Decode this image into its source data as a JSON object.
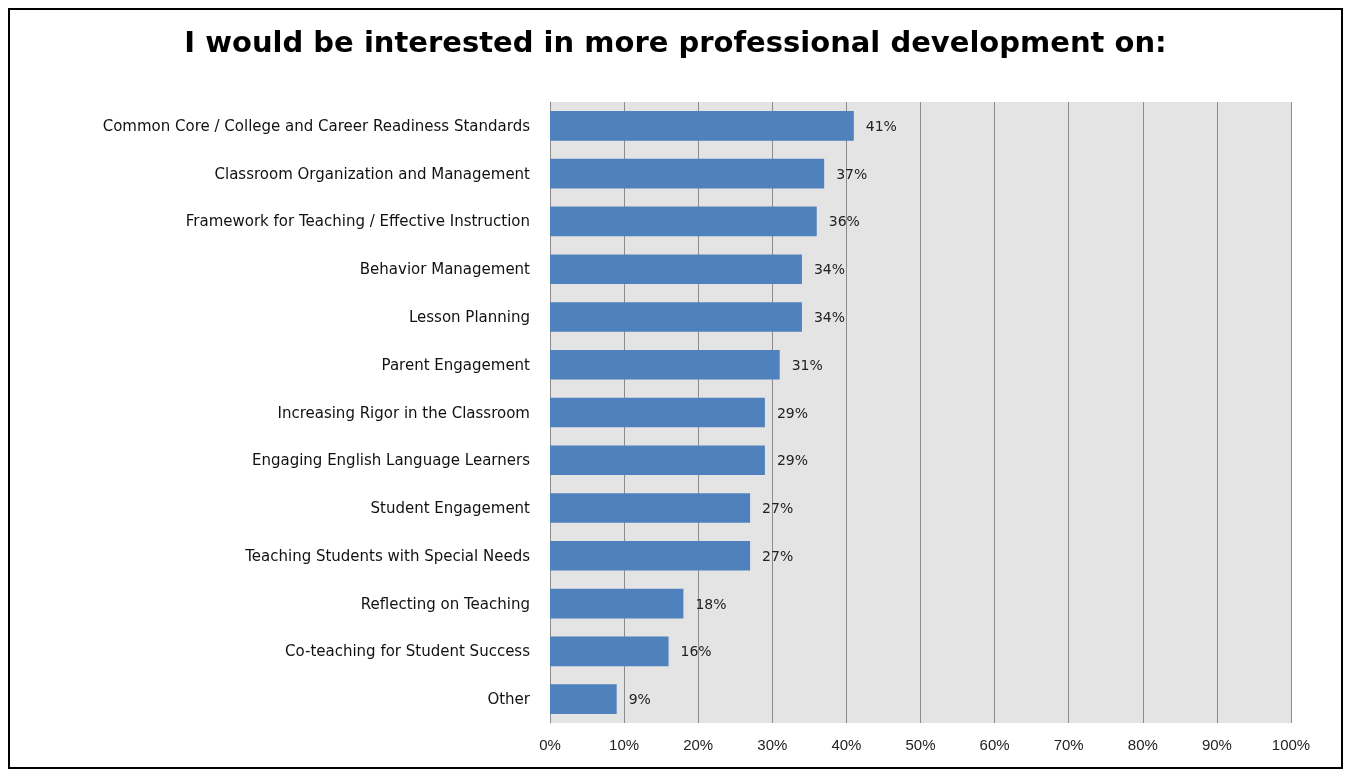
{
  "chart_data": {
    "type": "bar",
    "orientation": "horizontal",
    "title": "I would be interested in more professional development on:",
    "categories": [
      "Common Core / College and Career Readiness Standards",
      "Classroom Organization and Management",
      "Framework for Teaching / Effective Instruction",
      "Behavior Management",
      "Lesson Planning",
      "Parent Engagement",
      "Increasing Rigor in the Classroom",
      "Engaging English Language Learners",
      "Student Engagement",
      "Teaching Students with Special Needs",
      "Reflecting on Teaching",
      "Co-teaching for Student Success",
      "Other"
    ],
    "values": [
      41,
      37,
      36,
      34,
      34,
      31,
      29,
      29,
      27,
      27,
      18,
      16,
      9
    ],
    "value_labels": [
      "41%",
      "37%",
      "36%",
      "34%",
      "34%",
      "31%",
      "29%",
      "29%",
      "27%",
      "27%",
      "18%",
      "16%",
      "9%"
    ],
    "color": "#4f81bd",
    "xlim": [
      0,
      100
    ],
    "xticks": [
      {
        "value": 0,
        "label": "0%"
      },
      {
        "value": 10,
        "label": "10%"
      },
      {
        "value": 20,
        "label": "20%"
      },
      {
        "value": 30,
        "label": "30%"
      },
      {
        "value": 40,
        "label": "40%"
      },
      {
        "value": 50,
        "label": "50%"
      },
      {
        "value": 60,
        "label": "60%"
      },
      {
        "value": 70,
        "label": "70%"
      },
      {
        "value": 80,
        "label": "80%"
      },
      {
        "value": 90,
        "label": "90%"
      },
      {
        "value": 100,
        "label": "100%"
      }
    ],
    "grid": "x"
  }
}
